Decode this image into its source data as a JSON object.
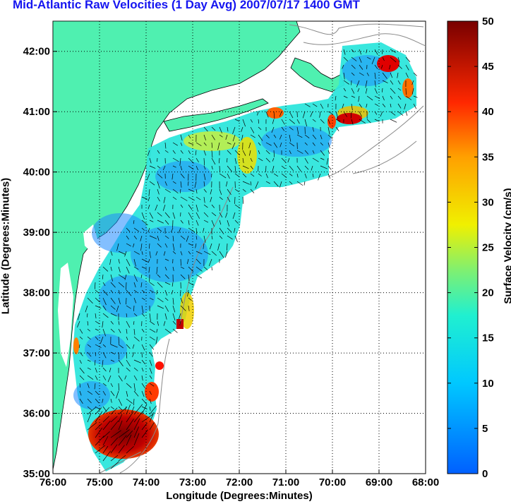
{
  "title": "Mid-Atlantic Raw Velocities (1 Day Avg) 2007/07/17 1400 GMT",
  "axes": {
    "xlabel": "Longitude (Degrees:Minutes)",
    "ylabel": "Latitude (Degrees:Minutes)",
    "x_ticks": [
      "76:00",
      "75:00",
      "74:00",
      "73:00",
      "72:00",
      "71:00",
      "70:00",
      "69:00",
      "68:00"
    ],
    "y_ticks": [
      "35:00",
      "36:00",
      "37:00",
      "38:00",
      "39:00",
      "40:00",
      "41:00",
      "42:00"
    ]
  },
  "colorbar": {
    "label": "Surface Velocity (cm/s)",
    "ticks": [
      "0",
      "5",
      "10",
      "15",
      "20",
      "25",
      "30",
      "35",
      "40",
      "45",
      "50"
    ],
    "range": [
      0,
      50
    ],
    "colormap": "jet"
  },
  "colors": {
    "land": "#4ff0b0",
    "title": "#1515f0"
  }
}
